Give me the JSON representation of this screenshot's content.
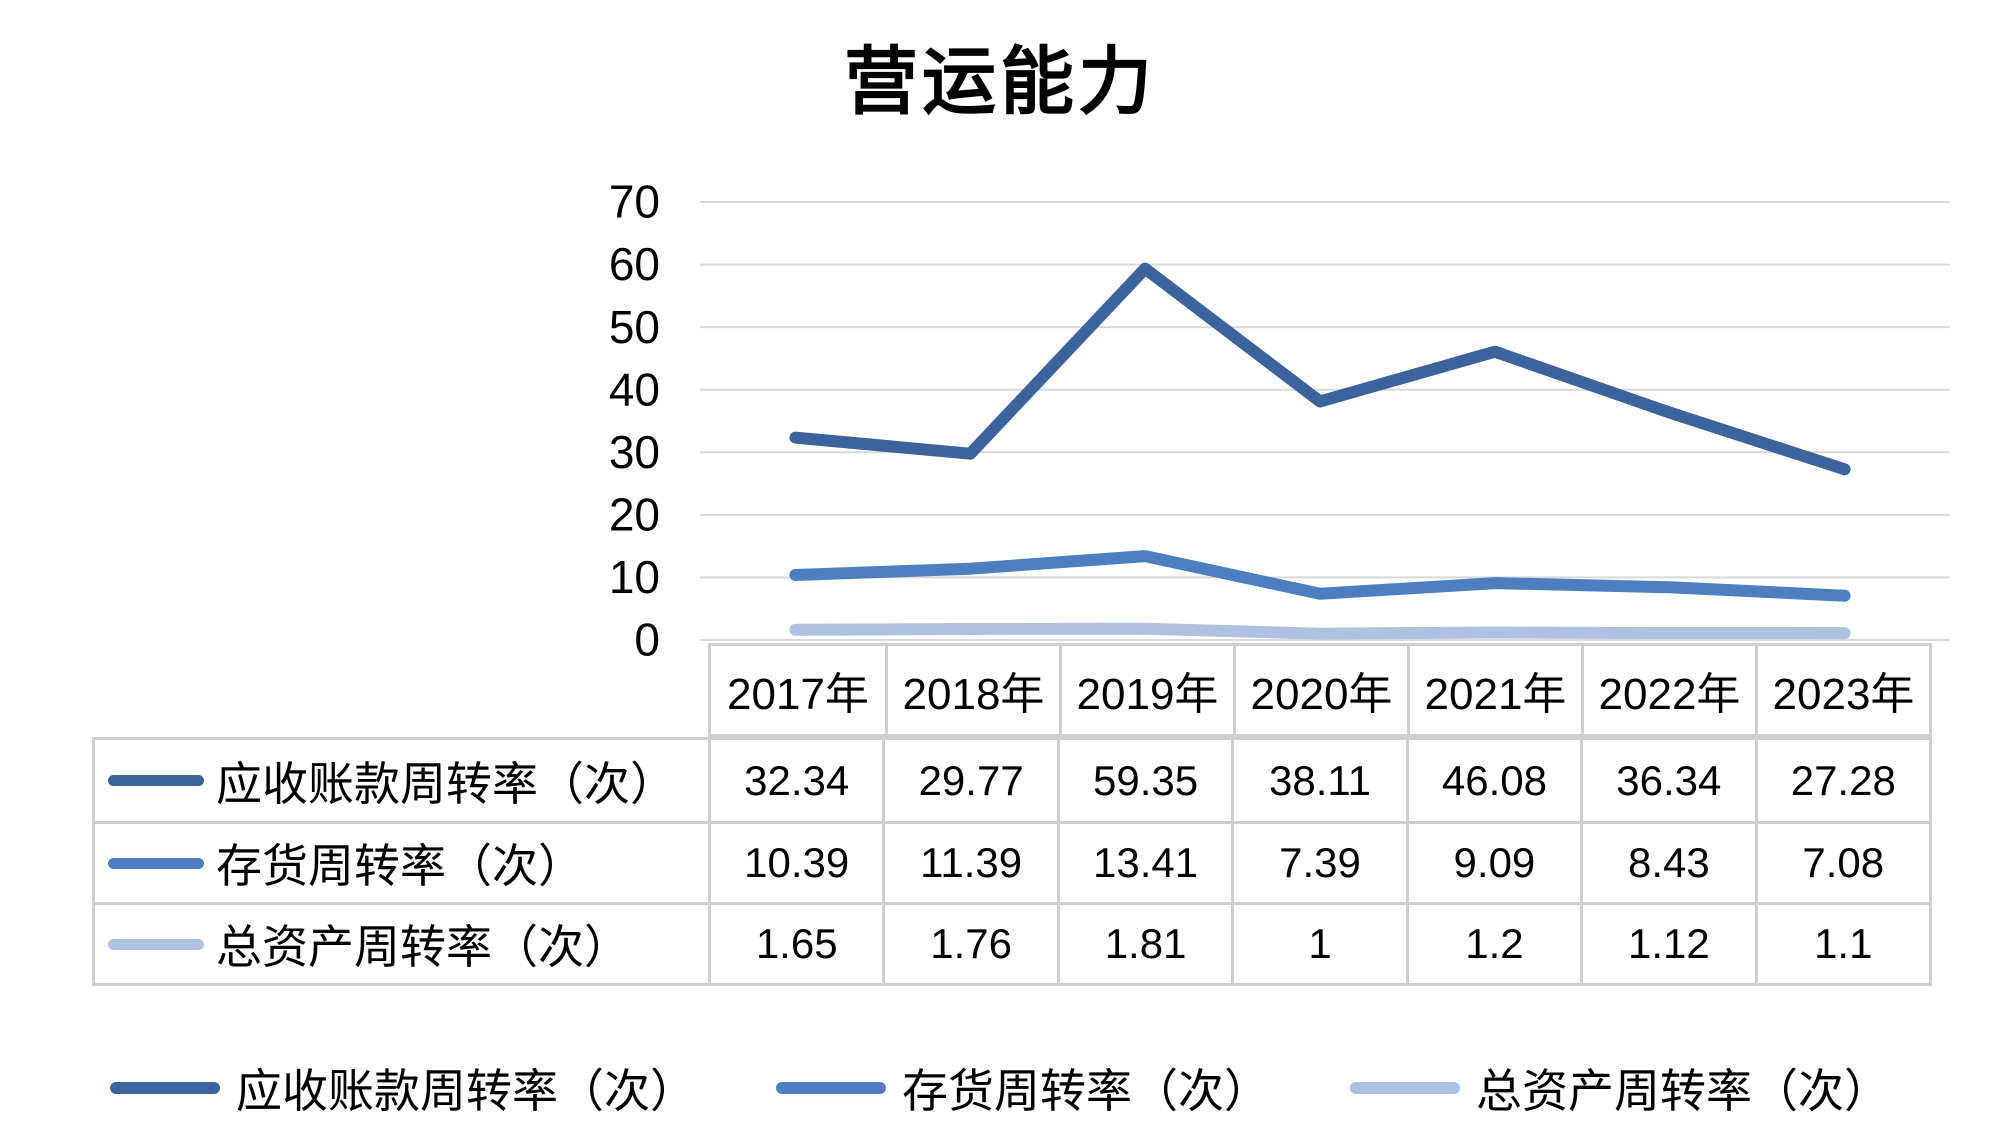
{
  "title": "营运能力",
  "chart_data": {
    "type": "line",
    "title": "营运能力",
    "categories": [
      "2017年",
      "2018年",
      "2019年",
      "2020年",
      "2021年",
      "2022年",
      "2023年"
    ],
    "series": [
      {
        "name": "应收账款周转率（次）",
        "color": "#3C639B",
        "values": [
          32.34,
          29.77,
          59.35,
          38.11,
          46.08,
          36.34,
          27.28
        ]
      },
      {
        "name": "存货周转率（次）",
        "color": "#4C7EC0",
        "values": [
          10.39,
          11.39,
          13.41,
          7.39,
          9.09,
          8.43,
          7.08
        ]
      },
      {
        "name": "总资产周转率（次）",
        "color": "#AEC1E1",
        "values": [
          1.65,
          1.76,
          1.81,
          1,
          1.2,
          1.12,
          1.1
        ]
      }
    ],
    "ylim": [
      0,
      70
    ],
    "yticks": [
      0,
      10,
      20,
      30,
      40,
      50,
      60,
      70
    ],
    "grid": true,
    "gridline_color": "#D9D9D9",
    "legend_position": "bottom",
    "data_table": true,
    "table_border_color": "#CFCFCF"
  }
}
